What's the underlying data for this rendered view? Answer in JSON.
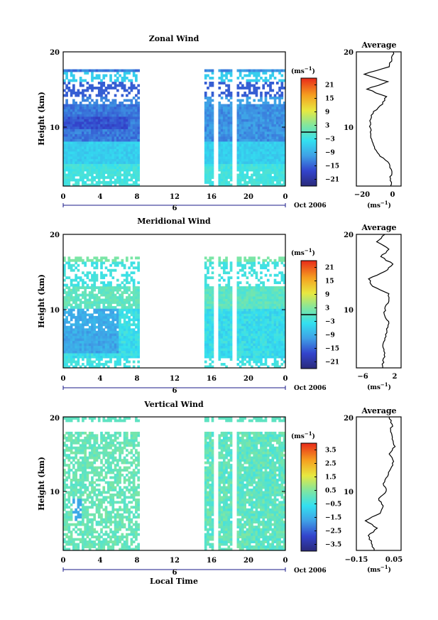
{
  "chart_data": [
    {
      "type": "heatmap",
      "title": "Zonal Wind",
      "ylabel": "Height (km)",
      "ylim": [
        2,
        20
      ],
      "y_ticks": [
        "20",
        "10"
      ],
      "x_ticks": [
        "0",
        "4",
        "8",
        "12",
        "16",
        "20",
        "0"
      ],
      "xlim": [
        0,
        24
      ],
      "date_marker": "6",
      "date_label": "Oct 2006",
      "colorbar": {
        "unit": "(ms",
        "unit_sup": "−1",
        "tick_labels": [
          "21",
          "15",
          "9",
          "3",
          "−3",
          "−9",
          "−15",
          "−21"
        ],
        "range": [
          -24,
          24
        ]
      },
      "profile": {
        "title": "Average",
        "y_ticks": [
          "20",
          "10"
        ],
        "x_ticks": [
          "−20",
          "0"
        ],
        "xlim": [
          -28,
          6
        ],
        "xlabel": "(ms",
        "xlabel_sup": "−1",
        "heights": [
          2,
          3,
          4,
          5,
          6,
          7,
          8,
          9,
          10,
          11,
          12,
          13,
          14,
          15,
          16,
          17,
          18,
          19,
          20
        ],
        "values": [
          -2,
          -2,
          -1,
          -3,
          -10,
          -14,
          -16,
          -17,
          -18,
          -17,
          -15,
          -8,
          -5,
          -20,
          -4,
          -22,
          -3,
          -1,
          0
        ]
      }
    },
    {
      "type": "heatmap",
      "title": "Meridional Wind",
      "ylabel": "Height (km)",
      "ylim": [
        2,
        20
      ],
      "y_ticks": [
        "20",
        "10"
      ],
      "x_ticks": [
        "0",
        "4",
        "8",
        "12",
        "16",
        "20",
        "0"
      ],
      "xlim": [
        0,
        24
      ],
      "date_marker": "6",
      "date_label": "Oct 2006",
      "colorbar": {
        "unit": "(ms",
        "unit_sup": "−1",
        "tick_labels": [
          "21",
          "15",
          "9",
          "3",
          "−3",
          "−9",
          "−15",
          "−21"
        ],
        "range": [
          -24,
          24
        ]
      },
      "profile": {
        "title": "Average",
        "y_ticks": [
          "20",
          "10"
        ],
        "x_ticks": [
          "−6",
          "2"
        ],
        "xlim": [
          -8,
          3
        ],
        "xlabel": "(ms",
        "xlabel_sup": "−1",
        "heights": [
          2,
          3,
          4,
          5,
          6,
          7,
          8,
          9,
          10,
          11,
          12,
          13,
          14,
          15,
          16,
          17,
          18,
          19,
          20
        ],
        "values": [
          -1.5,
          -1.5,
          -1,
          -1.5,
          -1,
          -0.5,
          0,
          -1,
          -1,
          0,
          0,
          -4,
          -5,
          -1,
          1,
          -2,
          0,
          -3,
          -1
        ]
      }
    },
    {
      "type": "heatmap",
      "title": "Vertical Wind",
      "ylabel": "Height (km)",
      "xlabel": "Local Time",
      "ylim": [
        2,
        20
      ],
      "y_ticks": [
        "20",
        "10"
      ],
      "x_ticks": [
        "0",
        "4",
        "8",
        "12",
        "16",
        "20",
        "0"
      ],
      "xlim": [
        0,
        24
      ],
      "date_marker": "6",
      "date_label": "Oct 2006",
      "colorbar": {
        "unit": "(ms",
        "unit_sup": "−1",
        "tick_labels": [
          "3.5",
          "2.5",
          "1.5",
          "0.5",
          "−0.5",
          "−1.5",
          "−2.5",
          "−3.5"
        ],
        "range": [
          -4,
          4
        ]
      },
      "profile": {
        "title": "Average",
        "y_ticks": [
          "20",
          "10"
        ],
        "x_ticks": [
          "−0.15",
          "0.05"
        ],
        "xlim": [
          -0.2,
          0.1
        ],
        "xlabel": "(ms",
        "xlabel_sup": "−1",
        "heights": [
          2,
          3,
          4,
          5,
          6,
          7,
          8,
          9,
          10,
          11,
          12,
          13,
          14,
          15,
          16,
          17,
          18,
          19,
          20
        ],
        "values": [
          -0.08,
          -0.1,
          -0.12,
          -0.06,
          -0.14,
          -0.04,
          -0.02,
          -0.05,
          0.0,
          -0.02,
          0.01,
          0.03,
          0.05,
          0.02,
          0.06,
          0.04,
          0.03,
          0.04,
          0.02
        ]
      }
    }
  ]
}
